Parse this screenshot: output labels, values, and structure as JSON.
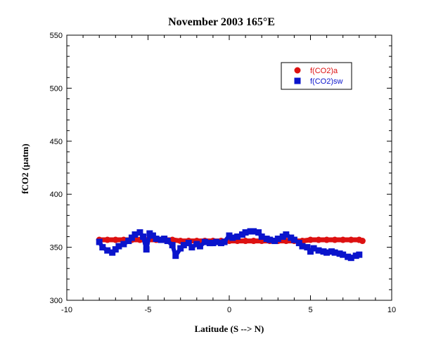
{
  "chart_data": {
    "type": "scatter",
    "title": "November 2003 165°E",
    "xlabel": "Latitude (S --> N)",
    "ylabel": "fCO2 (µatm)",
    "xlim": [
      -10,
      10
    ],
    "ylim": [
      300,
      550
    ],
    "x_ticks": [
      "-10",
      "-5",
      "0",
      "5",
      "10"
    ],
    "y_ticks": [
      "300",
      "350",
      "400",
      "450",
      "500",
      "550"
    ],
    "grid": false,
    "legend_position": "top-right",
    "series": [
      {
        "name": "f(CO2)a",
        "color": "#dd1111",
        "marker": "circle",
        "x": [
          -8.0,
          -7.5,
          -7.0,
          -6.5,
          -6.0,
          -5.5,
          -5.0,
          -4.5,
          -4.0,
          -3.5,
          -3.0,
          -2.5,
          -2.0,
          -1.5,
          -1.0,
          -0.5,
          0.0,
          0.5,
          1.0,
          1.5,
          2.0,
          2.5,
          3.0,
          3.5,
          4.0,
          4.5,
          5.0,
          5.5,
          6.0,
          6.5,
          7.0,
          7.5,
          8.0,
          8.2
        ],
        "y": [
          357,
          357,
          357,
          357,
          357,
          357,
          357,
          357,
          357,
          357,
          356,
          356,
          356,
          356,
          356,
          356,
          356,
          356,
          356,
          356,
          356,
          356,
          356,
          356,
          356,
          356,
          357,
          357,
          357,
          357,
          357,
          357,
          357,
          356
        ]
      },
      {
        "name": "f(CO2)sw",
        "color": "#0a14cc",
        "marker": "square",
        "x": [
          -8.0,
          -7.8,
          -7.5,
          -7.2,
          -7.0,
          -6.8,
          -6.5,
          -6.2,
          -6.0,
          -5.8,
          -5.5,
          -5.3,
          -5.1,
          -4.9,
          -4.7,
          -4.5,
          -4.2,
          -4.0,
          -3.8,
          -3.5,
          -3.3,
          -3.0,
          -2.8,
          -2.5,
          -2.3,
          -2.0,
          -1.8,
          -1.5,
          -1.2,
          -1.0,
          -0.8,
          -0.5,
          -0.3,
          0.0,
          0.2,
          0.5,
          0.8,
          1.0,
          1.3,
          1.5,
          1.8,
          2.0,
          2.3,
          2.5,
          2.8,
          3.0,
          3.3,
          3.5,
          3.8,
          4.0,
          4.3,
          4.5,
          4.8,
          5.0,
          5.2,
          5.5,
          5.8,
          6.0,
          6.3,
          6.5,
          6.8,
          7.0,
          7.3,
          7.5,
          7.8,
          8.0
        ],
        "y": [
          355,
          350,
          347,
          345,
          348,
          351,
          353,
          356,
          359,
          362,
          364,
          360,
          348,
          363,
          361,
          358,
          357,
          358,
          356,
          352,
          342,
          349,
          352,
          354,
          350,
          353,
          351,
          355,
          354,
          354,
          355,
          354,
          355,
          361,
          359,
          360,
          362,
          364,
          365,
          365,
          364,
          360,
          358,
          357,
          356,
          358,
          360,
          362,
          359,
          357,
          354,
          351,
          350,
          346,
          349,
          347,
          346,
          345,
          346,
          345,
          344,
          343,
          341,
          340,
          342,
          343
        ]
      }
    ]
  }
}
